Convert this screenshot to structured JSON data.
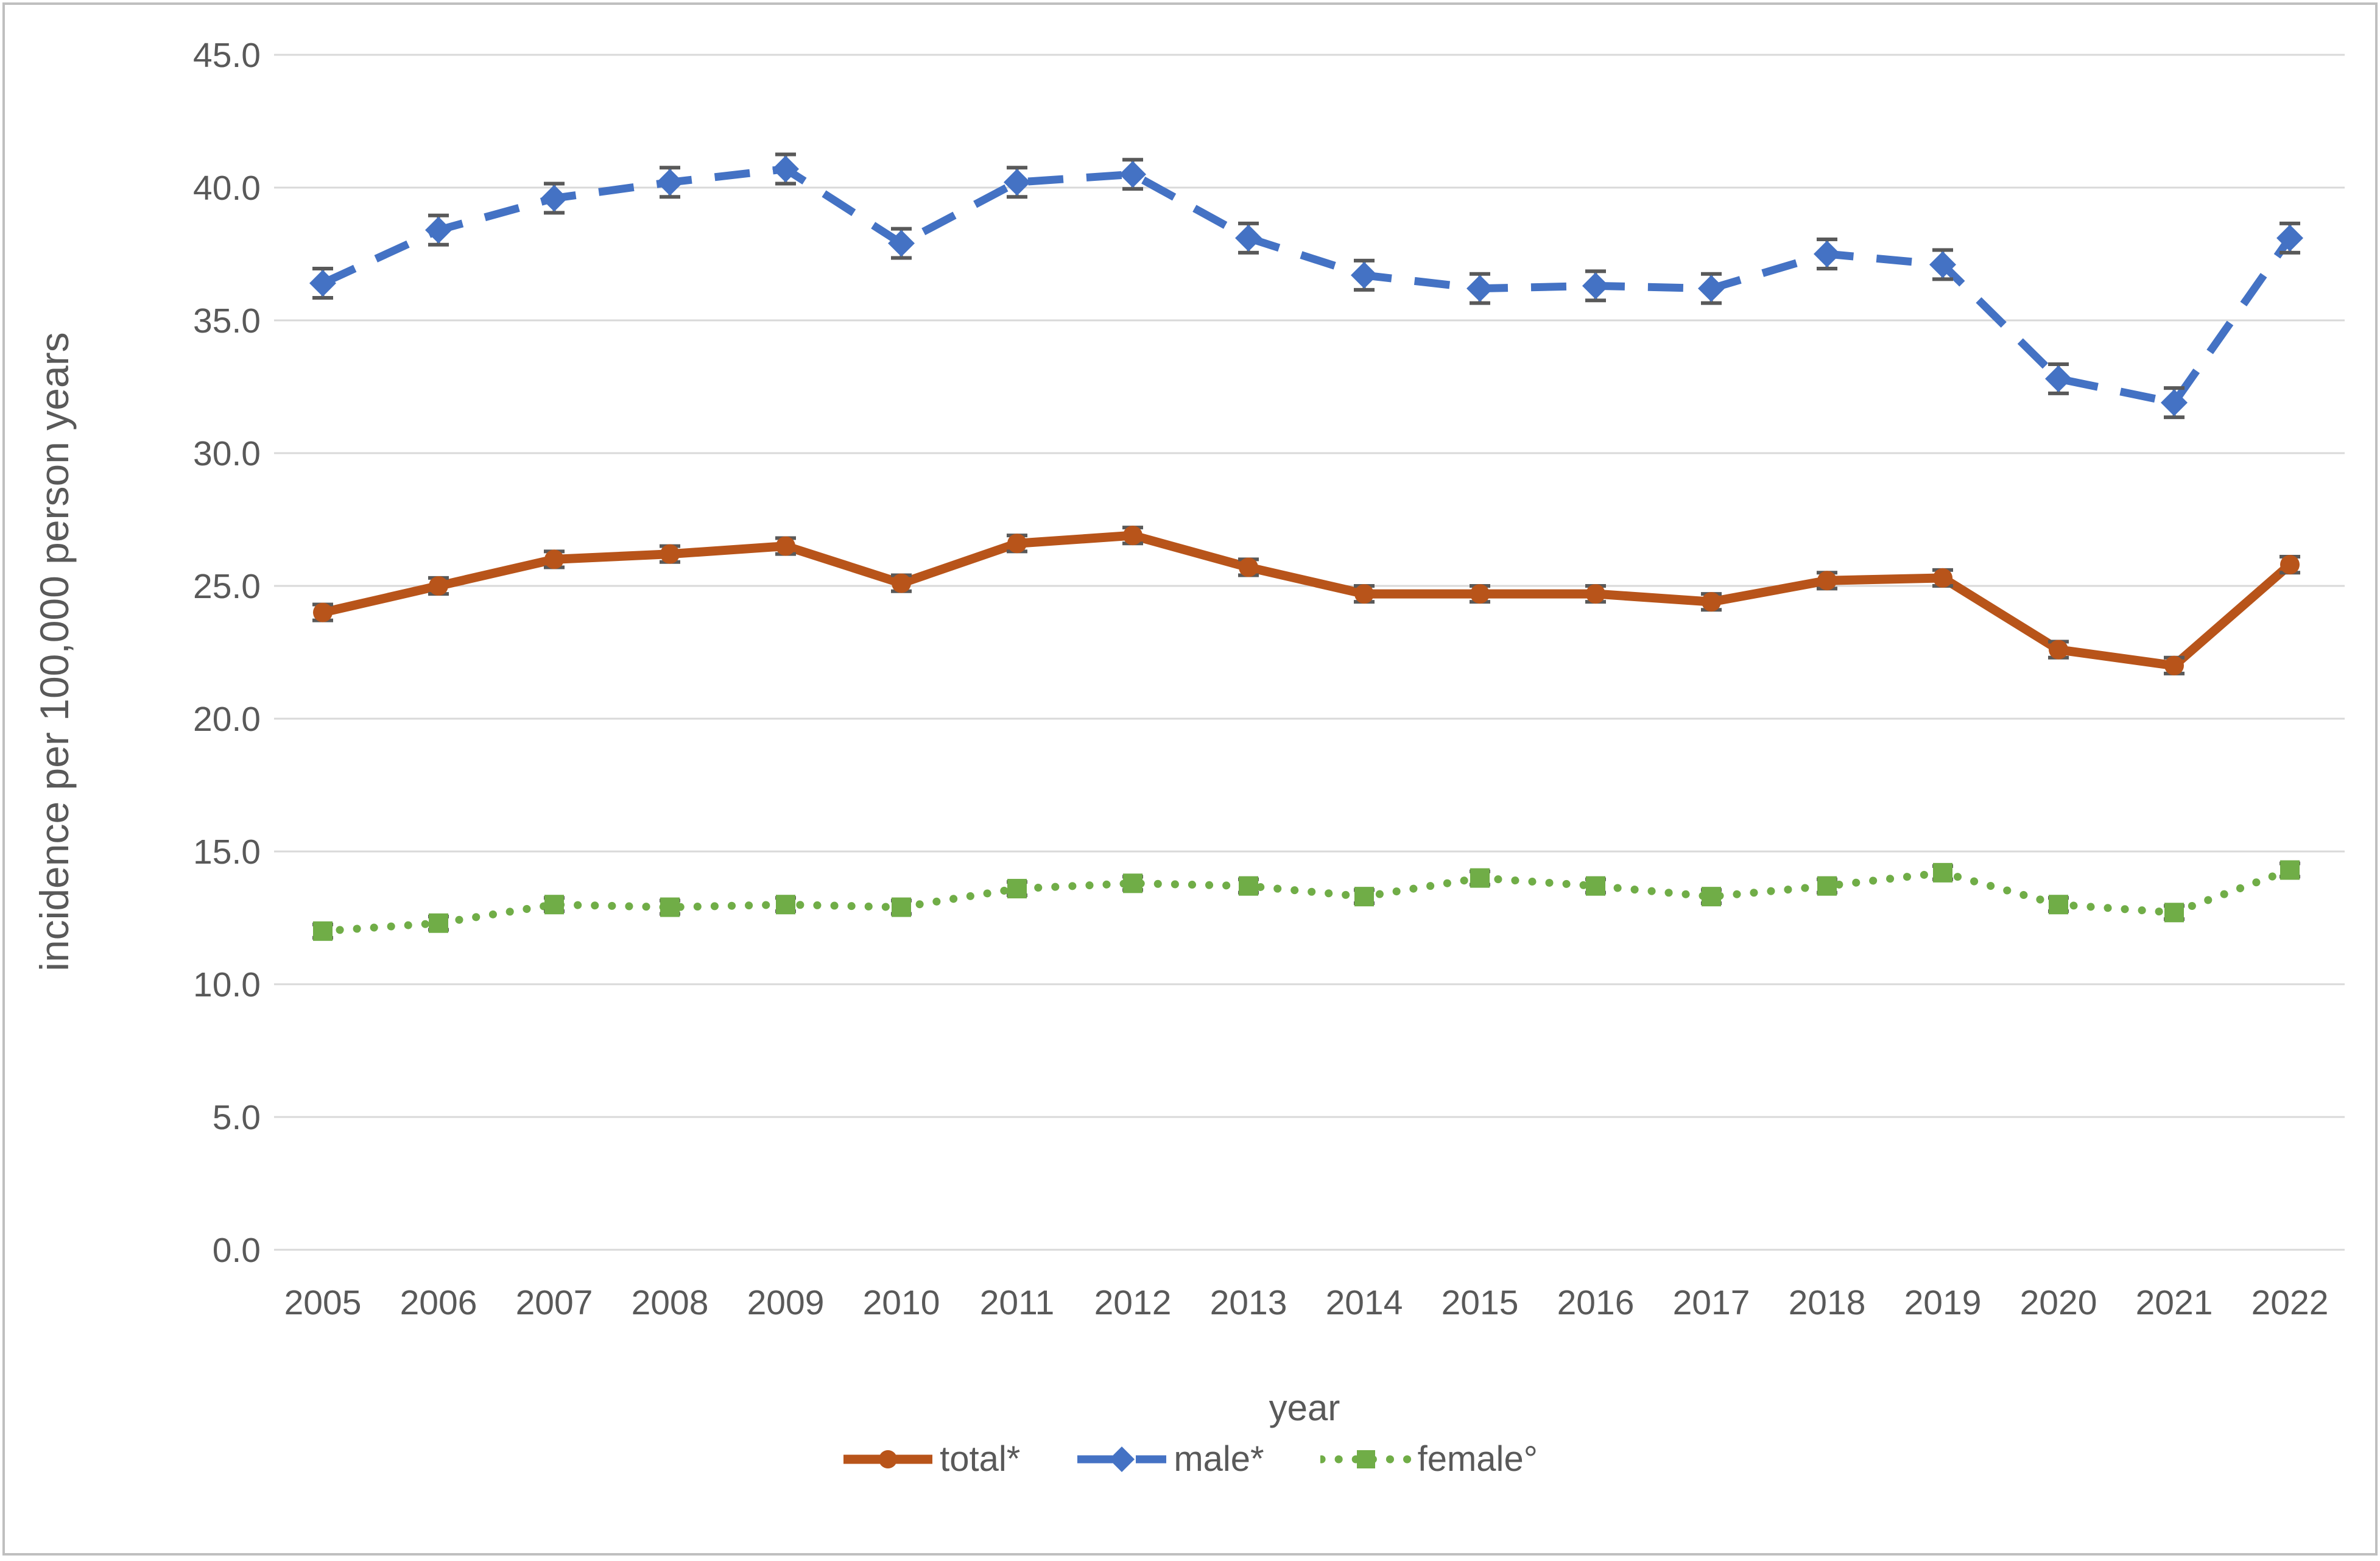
{
  "figure": {
    "background_color": "#ffffff",
    "border_color": "#bfbfbf"
  },
  "chart_data": {
    "type": "line",
    "xlabel": "year",
    "ylabel": "incidence per 100,000 person years",
    "categories": [
      "2005",
      "2006",
      "2007",
      "2008",
      "2009",
      "2010",
      "2011",
      "2012",
      "2013",
      "2014",
      "2015",
      "2016",
      "2017",
      "2018",
      "2019",
      "2020",
      "2021",
      "2022"
    ],
    "ylim": [
      0,
      45
    ],
    "ytick_step": 5,
    "ytick_labels": [
      "0.0",
      "5.0",
      "10.0",
      "15.0",
      "20.0",
      "25.0",
      "30.0",
      "35.0",
      "40.0",
      "45.0"
    ],
    "grid": "horizontal",
    "gridline_color": "#d9d9d9",
    "axis_text_color": "#595959",
    "error_bar_color": "#595959",
    "legend_position": "bottom-center",
    "series": [
      {
        "name": "total*",
        "color": "#b8541a",
        "marker": "circle",
        "line": "solid",
        "error_halfwidth": 0.3,
        "values": [
          24.0,
          25.0,
          26.0,
          26.2,
          26.5,
          25.1,
          26.6,
          26.9,
          25.7,
          24.7,
          24.7,
          24.7,
          24.4,
          25.2,
          25.3,
          22.6,
          22.0,
          25.8
        ]
      },
      {
        "name": "male*",
        "color": "#4472c4",
        "marker": "diamond",
        "line": "dashed",
        "error_halfwidth": 0.55,
        "values": [
          36.4,
          38.4,
          39.6,
          40.2,
          40.7,
          37.9,
          40.2,
          40.5,
          38.1,
          36.7,
          36.2,
          36.3,
          36.2,
          37.5,
          37.1,
          32.8,
          31.9,
          38.1
        ]
      },
      {
        "name": "female°",
        "color": "#70ad47",
        "marker": "square",
        "line": "dotted",
        "error_halfwidth": 0.25,
        "values": [
          12.0,
          12.3,
          13.0,
          12.9,
          13.0,
          12.9,
          13.6,
          13.8,
          13.7,
          13.3,
          14.0,
          13.7,
          13.3,
          13.7,
          14.2,
          13.0,
          12.7,
          14.3
        ]
      }
    ]
  }
}
